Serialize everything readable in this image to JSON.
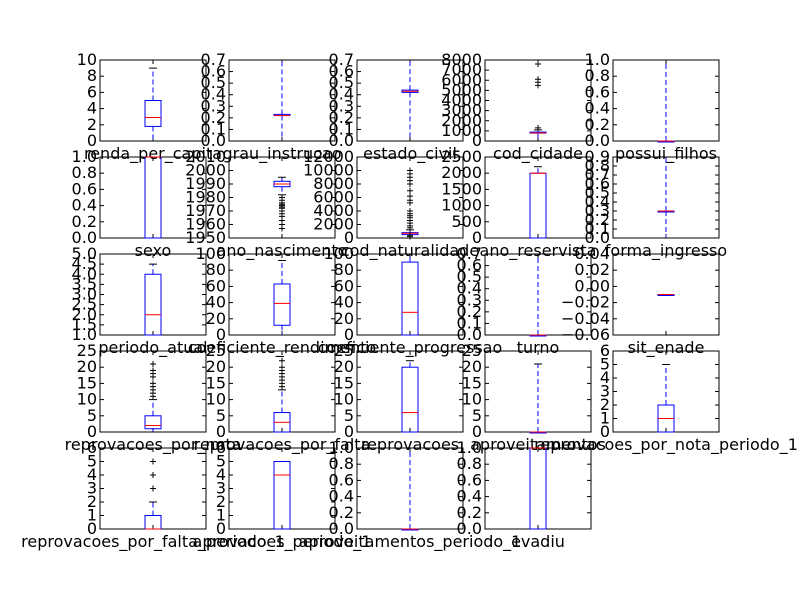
{
  "figure": {
    "background": "#ffffff",
    "colors": {
      "box": "#0000ff",
      "median": "#ff0000",
      "whisker": "#0000ff",
      "flier": "#000000",
      "axes": "#000000"
    },
    "grid": "5x5 subplot grid, 24 used, last row has 4 panels"
  },
  "chart_data": [
    {
      "type": "boxplot",
      "xlabel": "renda_per_capita",
      "ylim": [
        0,
        10
      ],
      "yticks": [
        "0",
        "2",
        "4",
        "6",
        "8",
        "10"
      ],
      "box": {
        "q1": 1.8,
        "median": 2.9,
        "q3": 5.0,
        "whislo": 0,
        "whishi": 9.0
      },
      "fliers": []
    },
    {
      "type": "boxplot",
      "xlabel": "grau_instrucao",
      "ylim": [
        0,
        0.7
      ],
      "yticks": [
        "0.0",
        "0.1",
        "0.2",
        "0.3",
        "0.4",
        "0.5",
        "0.6",
        "0.7"
      ],
      "box": {
        "q1": 0.22,
        "median": 0.22,
        "q3": 0.23,
        "whislo": 0,
        "whishi": 0.7
      },
      "fliers": []
    },
    {
      "type": "boxplot",
      "xlabel": "estado_civil",
      "ylim": [
        0,
        0.7
      ],
      "yticks": [
        "0.0",
        "0.1",
        "0.2",
        "0.3",
        "0.4",
        "0.5",
        "0.6",
        "0.7"
      ],
      "box": {
        "q1": 0.42,
        "median": 0.43,
        "q3": 0.44,
        "whislo": 0,
        "whishi": 0.7
      },
      "fliers": []
    },
    {
      "type": "boxplot",
      "xlabel": "cod_cidade",
      "ylim": [
        0,
        8000
      ],
      "yticks": [
        "0",
        "1000",
        "2000",
        "3000",
        "4000",
        "5000",
        "6000",
        "7000",
        "8000"
      ],
      "box": {
        "q1": 780,
        "median": 800,
        "q3": 880,
        "whislo": 0,
        "whishi": 1100
      },
      "fliers": [
        1300,
        5500,
        5800,
        6100,
        7600
      ]
    },
    {
      "type": "boxplot",
      "xlabel": "possui_filhos",
      "ylim": [
        0,
        1.0
      ],
      "yticks": [
        "0.0",
        "0.2",
        "0.4",
        "0.6",
        "0.8",
        "1.0"
      ],
      "box": {
        "q1": 0,
        "median": 0,
        "q3": 0,
        "whislo": 0,
        "whishi": 1.0
      },
      "fliers": []
    },
    {
      "type": "boxplot",
      "xlabel": "sexo",
      "ylim": [
        0,
        1.0
      ],
      "yticks": [
        "0.0",
        "0.2",
        "0.4",
        "0.6",
        "0.8",
        "1.0"
      ],
      "box": {
        "q1": 0,
        "median": 1.0,
        "q3": 1.0,
        "whislo": 0,
        "whishi": 1.0
      },
      "fliers": []
    },
    {
      "type": "boxplot",
      "xlabel": "ano_nascimento",
      "ylim": [
        1950,
        2010
      ],
      "yticks": [
        "1950",
        "1960",
        "1970",
        "1980",
        "1990",
        "2000",
        "2010"
      ],
      "box": {
        "q1": 1988,
        "median": 1990,
        "q3": 1992,
        "whislo": 1982,
        "whishi": 1995
      },
      "fliers": [
        1980,
        1978,
        1976,
        1975,
        1974,
        1973,
        1972,
        1970,
        1968,
        1966,
        1963,
        1960,
        1957
      ]
    },
    {
      "type": "boxplot",
      "xlabel": "cod_naturalidade",
      "ylim": [
        0,
        12000
      ],
      "yticks": [
        "0",
        "2000",
        "4000",
        "6000",
        "8000",
        "10000",
        "12000"
      ],
      "box": {
        "q1": 500,
        "median": 700,
        "q3": 800,
        "whislo": 0,
        "whishi": 1200
      },
      "fliers": [
        200,
        400,
        1500,
        1800,
        2200,
        2600,
        3000,
        3300,
        3600,
        4000,
        5200,
        5600,
        6200,
        7000,
        8000,
        8500,
        9000,
        9500,
        10000
      ]
    },
    {
      "type": "boxplot",
      "xlabel": "ano_reservista",
      "ylim": [
        0,
        2500
      ],
      "yticks": [
        "0",
        "500",
        "1000",
        "1500",
        "2000",
        "2500"
      ],
      "box": {
        "q1": 0,
        "median": 2000,
        "q3": 2000,
        "whislo": 0,
        "whishi": 2200
      },
      "fliers": []
    },
    {
      "type": "boxplot",
      "xlabel": "forma_ingresso",
      "ylim": [
        0,
        0.9
      ],
      "yticks": [
        "0.0",
        "0.1",
        "0.2",
        "0.3",
        "0.4",
        "0.5",
        "0.6",
        "0.7",
        "0.8",
        "0.9"
      ],
      "box": {
        "q1": 0.3,
        "median": 0.3,
        "q3": 0.3,
        "whislo": 0,
        "whishi": 0.9
      },
      "fliers": []
    },
    {
      "type": "boxplot",
      "xlabel": "periodo_atual",
      "ylim": [
        1.0,
        5.0
      ],
      "yticks": [
        "1.0",
        "1.5",
        "2.0",
        "2.5",
        "3.0",
        "3.5",
        "4.0",
        "4.5",
        "5.0"
      ],
      "box": {
        "q1": 1.0,
        "median": 2.0,
        "q3": 4.0,
        "whislo": 1.0,
        "whishi": 4.5
      },
      "fliers": []
    },
    {
      "type": "boxplot",
      "xlabel": "coeficiente_rendimento",
      "ylim": [
        0,
        100
      ],
      "yticks": [
        "0",
        "20",
        "40",
        "60",
        "80",
        "100"
      ],
      "box": {
        "q1": 12,
        "median": 39,
        "q3": 63,
        "whislo": 0,
        "whishi": 92
      },
      "fliers": []
    },
    {
      "type": "boxplot",
      "xlabel": "coeficiente_progressao",
      "ylim": [
        0,
        100
      ],
      "yticks": [
        "0",
        "20",
        "40",
        "60",
        "80",
        "100"
      ],
      "box": {
        "q1": 0,
        "median": 28,
        "q3": 90,
        "whislo": 0,
        "whishi": 100
      },
      "fliers": []
    },
    {
      "type": "boxplot",
      "xlabel": "turno",
      "ylim": [
        0,
        0.7
      ],
      "yticks": [
        "0.0",
        "0.1",
        "0.2",
        "0.3",
        "0.4",
        "0.5",
        "0.6",
        "0.7"
      ],
      "box": {
        "q1": 0,
        "median": 0,
        "q3": 0,
        "whislo": 0,
        "whishi": 0.75
      },
      "fliers": []
    },
    {
      "type": "boxplot",
      "xlabel": "sit_enade",
      "ylim": [
        -0.06,
        0.06
      ],
      "yticks": [
        "−0.06",
        "−0.04",
        "−0.02",
        "0.00",
        "0.02",
        "0.04"
      ],
      "box": {
        "q1": 0,
        "median": 0,
        "q3": 0,
        "whislo": 0,
        "whishi": 0
      },
      "fliers": []
    },
    {
      "type": "boxplot",
      "xlabel": "reprovacoes_por_nota",
      "ylim": [
        0,
        25
      ],
      "yticks": [
        "0",
        "5",
        "10",
        "15",
        "20",
        "25"
      ],
      "box": {
        "q1": 1,
        "median": 2,
        "q3": 5,
        "whislo": 0,
        "whishi": 10
      },
      "fliers": [
        11,
        12,
        13,
        14,
        15,
        17,
        18,
        19,
        21
      ]
    },
    {
      "type": "boxplot",
      "xlabel": "reprovacoes_por_falta",
      "ylim": [
        0,
        25
      ],
      "yticks": [
        "0",
        "5",
        "10",
        "15",
        "20",
        "25"
      ],
      "box": {
        "q1": 0,
        "median": 3,
        "q3": 6,
        "whislo": 0,
        "whishi": 13
      },
      "fliers": [
        14,
        15,
        16,
        17,
        18,
        19,
        20,
        22
      ]
    },
    {
      "type": "boxplot",
      "xlabel": "reprovacoes",
      "ylim": [
        0,
        25
      ],
      "yticks": [
        "0",
        "5",
        "10",
        "15",
        "20",
        "25"
      ],
      "box": {
        "q1": 0,
        "median": 6,
        "q3": 20,
        "whislo": 0,
        "whishi": 22
      },
      "fliers": []
    },
    {
      "type": "boxplot",
      "xlabel": "aproveitamentos",
      "ylim": [
        0,
        25
      ],
      "yticks": [
        "0",
        "5",
        "10",
        "15",
        "20",
        "25"
      ],
      "box": {
        "q1": 0,
        "median": 0,
        "q3": 0,
        "whislo": 0,
        "whishi": 21
      },
      "fliers": []
    },
    {
      "type": "boxplot",
      "xlabel": "reprovacoes_por_nota_periodo_1",
      "ylim": [
        0,
        6
      ],
      "yticks": [
        "0",
        "1",
        "2",
        "3",
        "4",
        "5",
        "6"
      ],
      "box": {
        "q1": 0,
        "median": 1,
        "q3": 2,
        "whislo": 0,
        "whishi": 5
      },
      "fliers": []
    },
    {
      "type": "boxplot",
      "xlabel": "reprovacoes_por_falta_periodo_1",
      "ylim": [
        0,
        6
      ],
      "yticks": [
        "0",
        "1",
        "2",
        "3",
        "4",
        "5",
        "6"
      ],
      "box": {
        "q1": 0,
        "median": 0,
        "q3": 1,
        "whislo": 0,
        "whishi": 2
      },
      "fliers": [
        3,
        4,
        5
      ]
    },
    {
      "type": "boxplot",
      "xlabel": "aprovacoes_periodo_1",
      "ylim": [
        0,
        6
      ],
      "yticks": [
        "0",
        "1",
        "2",
        "3",
        "4",
        "5",
        "6"
      ],
      "box": {
        "q1": 0,
        "median": 4,
        "q3": 5,
        "whislo": 0,
        "whishi": 5
      },
      "fliers": []
    },
    {
      "type": "boxplot",
      "xlabel": "aproveitamentos_periodo_1",
      "ylim": [
        0,
        1.0
      ],
      "yticks": [
        "0.0",
        "0.2",
        "0.4",
        "0.6",
        "0.8",
        "1.0"
      ],
      "box": {
        "q1": 0,
        "median": 0,
        "q3": 0,
        "whislo": 0,
        "whishi": 1.0
      },
      "fliers": []
    },
    {
      "type": "boxplot",
      "xlabel": "evadiu",
      "ylim": [
        0,
        1.0
      ],
      "yticks": [
        "0.0",
        "0.2",
        "0.4",
        "0.6",
        "0.8",
        "1.0"
      ],
      "box": {
        "q1": 0,
        "median": 1,
        "q3": 1,
        "whislo": 0,
        "whishi": 1
      },
      "fliers": []
    }
  ]
}
